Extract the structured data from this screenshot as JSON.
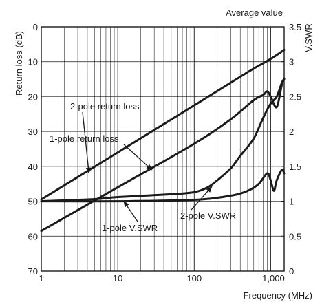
{
  "chart_data": {
    "type": "line",
    "title": "Average value",
    "xlabel": "Frequency (MHz)",
    "ylabel": "Return loss (dB)",
    "y2label": "V.SWR",
    "x_scale": "log",
    "xlim": [
      1,
      1500
    ],
    "ylim": [
      70,
      0
    ],
    "y2lim": [
      0,
      3.5
    ],
    "grid": true,
    "x_ticks": [
      {
        "value": 1,
        "label": "1"
      },
      {
        "value": 10,
        "label": "10"
      },
      {
        "value": 100,
        "label": "100"
      },
      {
        "value": 1000,
        "label": "1,000"
      }
    ],
    "y_ticks": [
      {
        "value": 0,
        "label": "0"
      },
      {
        "value": 10,
        "label": "10"
      },
      {
        "value": 20,
        "label": "20"
      },
      {
        "value": 30,
        "label": "30"
      },
      {
        "value": 40,
        "label": "40"
      },
      {
        "value": 50,
        "label": "50"
      },
      {
        "value": 60,
        "label": "60"
      },
      {
        "value": 70,
        "label": "70"
      }
    ],
    "y2_ticks": [
      {
        "value": 3.5,
        "label": "3.5"
      },
      {
        "value": 3,
        "label": "3"
      },
      {
        "value": 2.5,
        "label": "2.5"
      },
      {
        "value": 2,
        "label": "2"
      },
      {
        "value": 1.5,
        "label": "1.5"
      },
      {
        "value": 1,
        "label": "1"
      },
      {
        "value": 0.5,
        "label": "0.5"
      },
      {
        "value": 0,
        "label": "0"
      }
    ],
    "series": [
      {
        "name": "2-pole return loss",
        "axis": "y",
        "x": [
          1,
          10,
          100,
          500,
          1000,
          1500
        ],
        "y": [
          49.5,
          36,
          22.5,
          13,
          9.2,
          6.6
        ]
      },
      {
        "name": "1-pole return loss",
        "axis": "y",
        "x": [
          1,
          10,
          100,
          300,
          600,
          800,
          900,
          1000,
          1200,
          1400,
          1500
        ],
        "y": [
          58.5,
          46,
          33.5,
          26.5,
          21,
          19.5,
          18.5,
          20,
          23,
          16.5,
          14.8
        ]
      },
      {
        "name": "2-pole V.SWR",
        "axis": "y2",
        "x": [
          1,
          5,
          10,
          50,
          100,
          150,
          200,
          300,
          400,
          600,
          800,
          1000,
          1200,
          1400,
          1500
        ],
        "y": [
          1.0,
          1.03,
          1.06,
          1.1,
          1.13,
          1.2,
          1.3,
          1.47,
          1.65,
          1.9,
          2.2,
          2.4,
          2.5,
          2.7,
          2.75
        ]
      },
      {
        "name": "1-pole V.SWR",
        "axis": "y2",
        "x": [
          1,
          10,
          100,
          300,
          500,
          700,
          900,
          1000,
          1100,
          1200,
          1400,
          1500
        ],
        "y": [
          1.0,
          1.0,
          1.02,
          1.08,
          1.15,
          1.25,
          1.4,
          1.3,
          1.15,
          1.3,
          1.45,
          1.4
        ]
      }
    ],
    "annotations": [
      {
        "text": "2-pole return loss",
        "series": "2-pole return loss"
      },
      {
        "text": "1-pole return loss",
        "series": "1-pole return loss"
      },
      {
        "text": "2-pole V.SWR",
        "series": "2-pole V.SWR"
      },
      {
        "text": "1-pole V.SWR",
        "series": "1-pole V.SWR"
      }
    ]
  }
}
